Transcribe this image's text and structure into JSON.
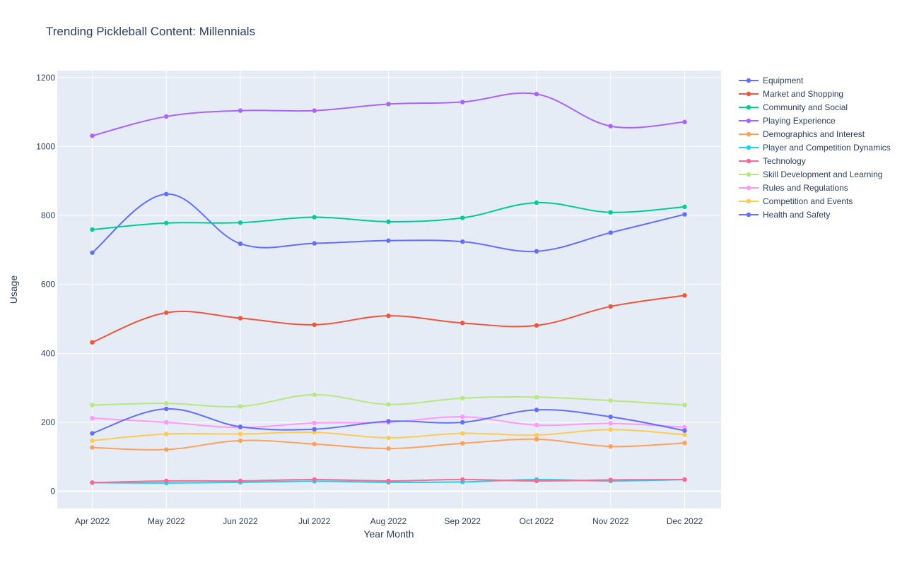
{
  "chart_data": {
    "type": "line",
    "title": "Trending Pickleball Content:  Millennials",
    "xlabel": "Year Month",
    "ylabel": "Usage",
    "categories": [
      "Apr 2022",
      "May 2022",
      "Jun 2022",
      "Jul 2022",
      "Aug 2022",
      "Sep 2022",
      "Oct 2022",
      "Nov 2022",
      "Dec 2022"
    ],
    "ylim": [
      -50,
      1220
    ],
    "yticks": [
      0,
      200,
      400,
      600,
      800,
      1000,
      1200
    ],
    "grid": true,
    "legend_position": "right",
    "plot_background": "#e5ecf6",
    "series": [
      {
        "name": "Equipment",
        "color": "#636efa",
        "values": [
          692,
          862,
          718,
          719,
          727,
          724,
          696,
          750,
          803
        ]
      },
      {
        "name": "Market and Shopping",
        "color": "#ef553b",
        "values": [
          432,
          518,
          502,
          483,
          509,
          488,
          481,
          536,
          568
        ]
      },
      {
        "name": "Community and Social",
        "color": "#00cc96",
        "values": [
          759,
          778,
          779,
          795,
          782,
          793,
          837,
          809,
          825
        ]
      },
      {
        "name": "Playing Experience",
        "color": "#ab63fa",
        "values": [
          1031,
          1087,
          1104,
          1104,
          1123,
          1129,
          1152,
          1059,
          1071
        ]
      },
      {
        "name": "Demographics and Interest",
        "color": "#ffa15a",
        "values": [
          127,
          121,
          147,
          137,
          124,
          139,
          151,
          130,
          140
        ]
      },
      {
        "name": "Player and Competition Dynamics",
        "color": "#19d3f3",
        "values": [
          25,
          24,
          26,
          29,
          26,
          27,
          34,
          30,
          34
        ]
      },
      {
        "name": "Technology",
        "color": "#ff6692",
        "values": [
          25,
          30,
          30,
          34,
          30,
          34,
          30,
          33,
          34
        ]
      },
      {
        "name": "Skill Development and Learning",
        "color": "#b6e880",
        "values": [
          250,
          255,
          246,
          280,
          252,
          270,
          273,
          263,
          250
        ]
      },
      {
        "name": "Rules and Regulations",
        "color": "#ff97ff",
        "values": [
          212,
          200,
          185,
          198,
          200,
          216,
          192,
          197,
          186
        ]
      },
      {
        "name": "Competition and Events",
        "color": "#fecb52",
        "values": [
          147,
          166,
          166,
          171,
          155,
          168,
          163,
          179,
          164
        ]
      },
      {
        "name": "Health and Safety",
        "color": "#636efa",
        "values": [
          168,
          239,
          187,
          180,
          203,
          200,
          236,
          216,
          176
        ]
      }
    ]
  }
}
